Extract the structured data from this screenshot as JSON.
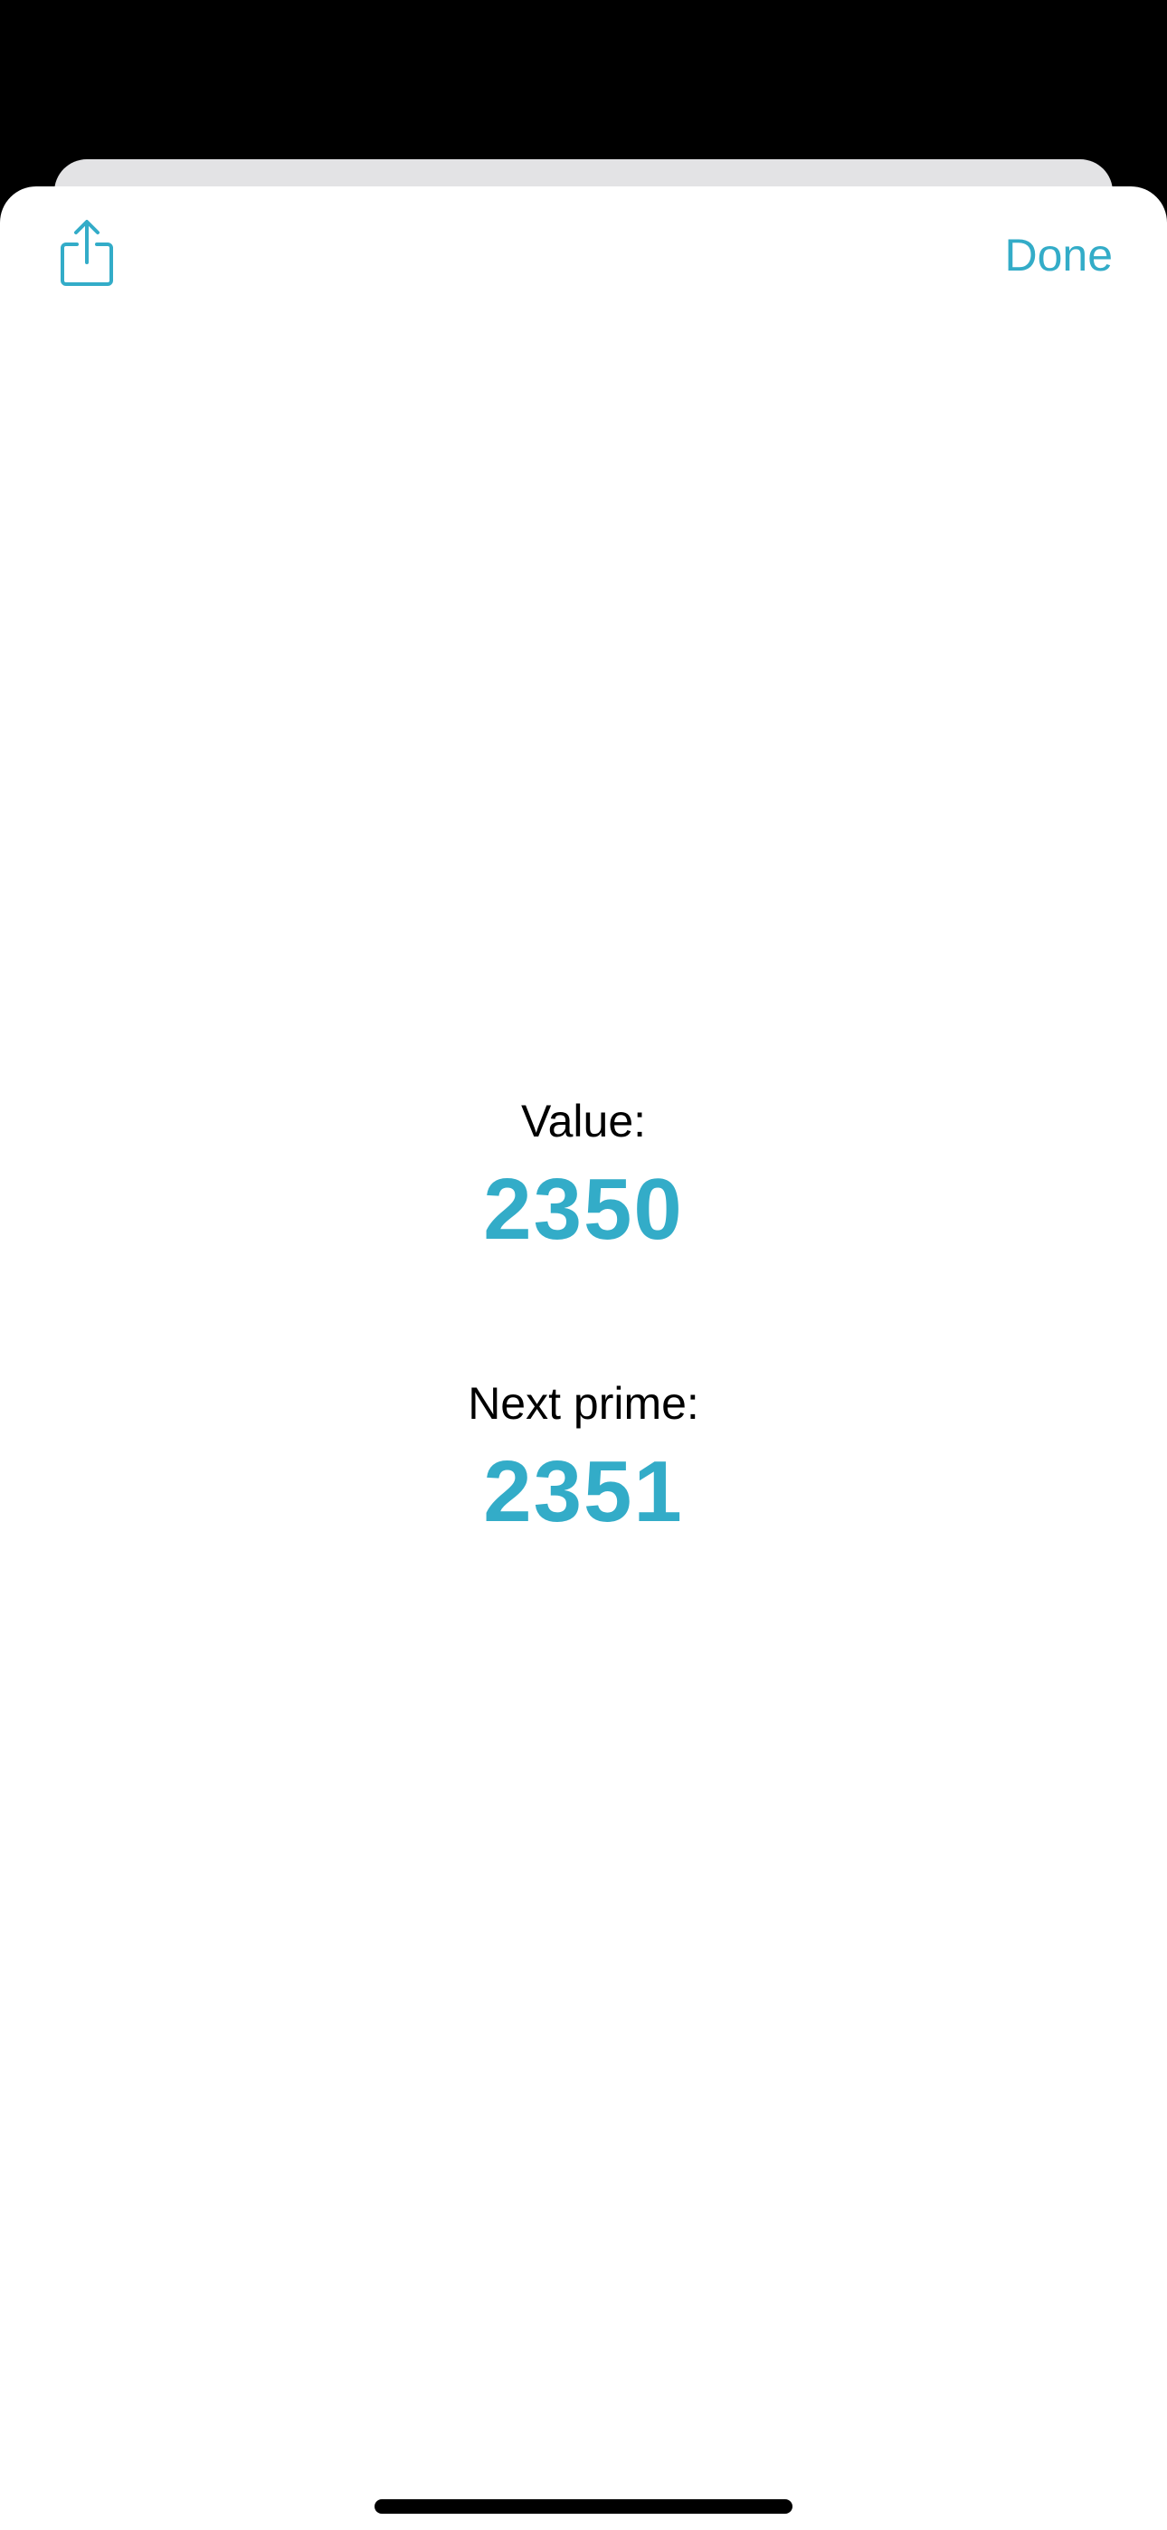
{
  "nav": {
    "share_icon": "share-icon",
    "done_label": "Done"
  },
  "value": {
    "label": "Value:",
    "number": "2350"
  },
  "next_prime": {
    "label": "Next prime:",
    "number": "2351"
  },
  "colors": {
    "accent": "#33acc8",
    "background": "#ffffff",
    "backdrop": "#000000",
    "back_card": "#e3e3e5"
  }
}
